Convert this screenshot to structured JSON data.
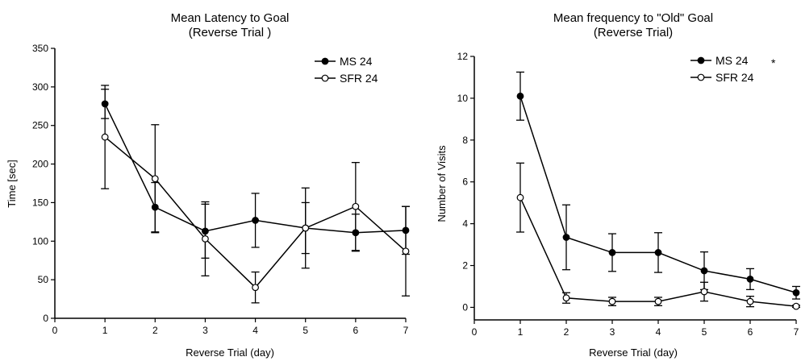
{
  "chart_data": [
    {
      "type": "line",
      "title": "Mean Latency to Goal",
      "subtitle": "(Reverse Trial )",
      "xlabel": "Reverse Trial (day)",
      "ylabel": "Time [sec]",
      "xlim": [
        0,
        7
      ],
      "ylim": [
        0,
        350
      ],
      "xticks": [
        "0",
        "1",
        "2",
        "3",
        "4",
        "5",
        "6",
        "7"
      ],
      "yticks": [
        "0",
        "50",
        "100",
        "150",
        "200",
        "250",
        "300",
        "350"
      ],
      "x": [
        1,
        2,
        3,
        4,
        5,
        6,
        7
      ],
      "grid": false,
      "legend_position": "top-right",
      "series": [
        {
          "name": "MS 24",
          "marker": "filled",
          "values": [
            278,
            144,
            113,
            127,
            117,
            111,
            114
          ],
          "error": [
            19,
            32,
            35,
            35,
            33,
            24,
            31
          ]
        },
        {
          "name": "SFR 24",
          "marker": "open",
          "values": [
            235,
            181,
            103,
            40,
            117,
            145,
            87
          ],
          "error": [
            67,
            70,
            48,
            20,
            52,
            57,
            58
          ]
        }
      ]
    },
    {
      "type": "line",
      "title": "Mean frequency to \"Old\" Goal",
      "subtitle": "(Reverse Trial)",
      "xlabel": "Reverse Trial (day)",
      "ylabel": "Number of Visits",
      "xlim": [
        0,
        7
      ],
      "ylim": [
        -0.6,
        12
      ],
      "xticks": [
        "0",
        "1",
        "2",
        "3",
        "4",
        "5",
        "6",
        "7"
      ],
      "yticks": [
        "0",
        "2",
        "4",
        "6",
        "8",
        "10",
        "12"
      ],
      "x": [
        1,
        2,
        3,
        4,
        5,
        6,
        7
      ],
      "grid": false,
      "legend_position": "top-right",
      "legend_marker": "*",
      "series": [
        {
          "name": "MS 24",
          "marker": "filled",
          "values": [
            10.1,
            3.35,
            2.62,
            2.62,
            1.75,
            1.35,
            0.7
          ],
          "error": [
            1.15,
            1.55,
            0.9,
            0.95,
            0.9,
            0.5,
            0.3
          ]
        },
        {
          "name": "SFR 24",
          "marker": "open",
          "values": [
            5.25,
            0.45,
            0.28,
            0.28,
            0.75,
            0.28,
            0.05
          ],
          "error": [
            1.65,
            0.25,
            0.2,
            0.2,
            0.45,
            0.25,
            0.05
          ]
        }
      ]
    }
  ]
}
